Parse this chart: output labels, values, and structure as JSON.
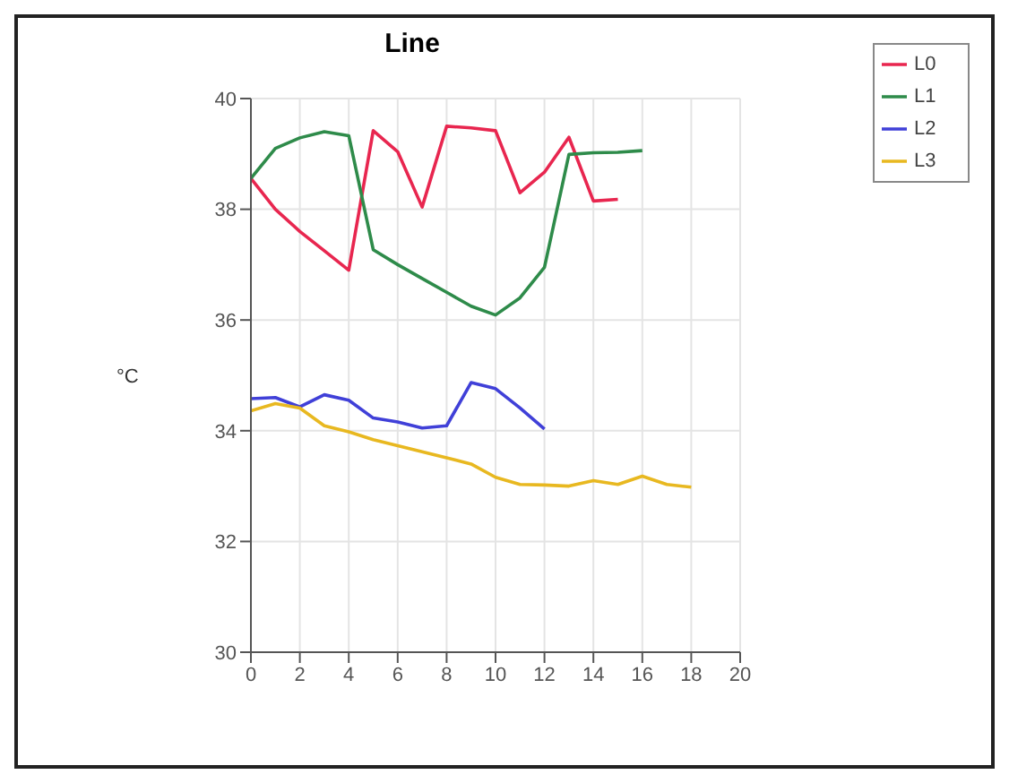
{
  "chart_data": {
    "type": "line",
    "title": "Line",
    "ylabel": "°C",
    "xlim": [
      0,
      20
    ],
    "xticks": [
      0,
      2,
      4,
      6,
      8,
      10,
      12,
      14,
      16,
      18,
      20
    ],
    "ylim": [
      30,
      40
    ],
    "yticks": [
      30,
      32,
      34,
      36,
      38,
      40
    ],
    "grid": true,
    "legend": "top right",
    "marker": "none",
    "line_style": "solid",
    "series": [
      {
        "name": "L0",
        "color": "#e8264f",
        "x": [
          0,
          1,
          2,
          3,
          4,
          5,
          6,
          7,
          8,
          9,
          10,
          11,
          12,
          13,
          14,
          15
        ],
        "values": [
          38.56,
          38.0,
          37.6,
          37.25,
          36.9,
          39.42,
          39.04,
          38.04,
          39.5,
          39.47,
          39.42,
          38.3,
          38.67,
          39.3,
          38.15,
          38.18
        ]
      },
      {
        "name": "L1",
        "color": "#2e8b4a",
        "x": [
          0,
          1,
          2,
          3,
          4,
          5,
          6,
          7,
          8,
          9,
          10,
          11,
          12,
          13,
          14,
          15,
          16
        ],
        "values": [
          38.56,
          39.1,
          39.29,
          39.4,
          39.33,
          37.27,
          37.0,
          36.75,
          36.5,
          36.25,
          36.09,
          36.4,
          36.95,
          38.99,
          39.02,
          39.03,
          39.06
        ]
      },
      {
        "name": "L2",
        "color": "#4040d8",
        "x": [
          0,
          1,
          2,
          3,
          4,
          5,
          6,
          7,
          8,
          9,
          10,
          11,
          12
        ],
        "values": [
          34.58,
          34.6,
          34.43,
          34.65,
          34.55,
          34.23,
          34.16,
          34.05,
          34.09,
          34.87,
          34.76,
          34.41,
          34.03
        ]
      },
      {
        "name": "L3",
        "color": "#e8b820",
        "x": [
          0,
          1,
          2,
          3,
          4,
          5,
          6,
          7,
          8,
          9,
          10,
          11,
          12,
          13,
          14,
          15,
          16,
          17,
          18
        ],
        "values": [
          34.36,
          34.49,
          34.41,
          34.09,
          33.98,
          33.84,
          33.73,
          33.62,
          33.51,
          33.4,
          33.16,
          33.03,
          33.02,
          33.0,
          33.1,
          33.03,
          33.18,
          33.03,
          32.98
        ]
      }
    ]
  }
}
